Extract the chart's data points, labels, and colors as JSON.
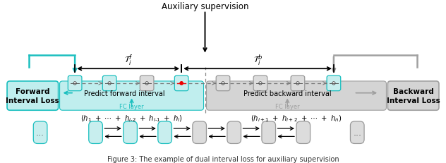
{
  "title": "Auxiliary supervision",
  "caption": "Figure 3: The example of dual interval loss for auxiliary supervision",
  "forward_label": "Forward\nInterval Loss",
  "backward_label": "Backward\nInterval Loss",
  "predict_forward": "Predict forward interval",
  "predict_backward": "Predict backward interval",
  "fc_layer": "FC layer",
  "Ti_f": "$\\mathcal{T}_i^f$",
  "Ti_b": "$\\mathcal{T}_i^b$",
  "sum_forward": "$(h_1 \\ + \\ \\cdots \\ + \\ h_{i\\text{-}2} \\ + \\ h_{i\\text{-}1} \\ + \\ h_i)$",
  "sum_backward": "$(h_{i+1} \\ + \\ h_{i+2} \\ + \\ \\cdots \\ + \\ h_n)$",
  "cyan_color": "#1BBFBF",
  "gray_color": "#A0A0A0",
  "box_cyan_fill": "#C8EEEE",
  "box_gray_fill": "#DCDCDC",
  "label_cyan_bg": "#C0EEEE",
  "label_gray_bg": "#D4D4D4",
  "red_color": "#EE0000",
  "black": "#000000",
  "white": "#FFFFFF",
  "bg": "#FFFFFF"
}
